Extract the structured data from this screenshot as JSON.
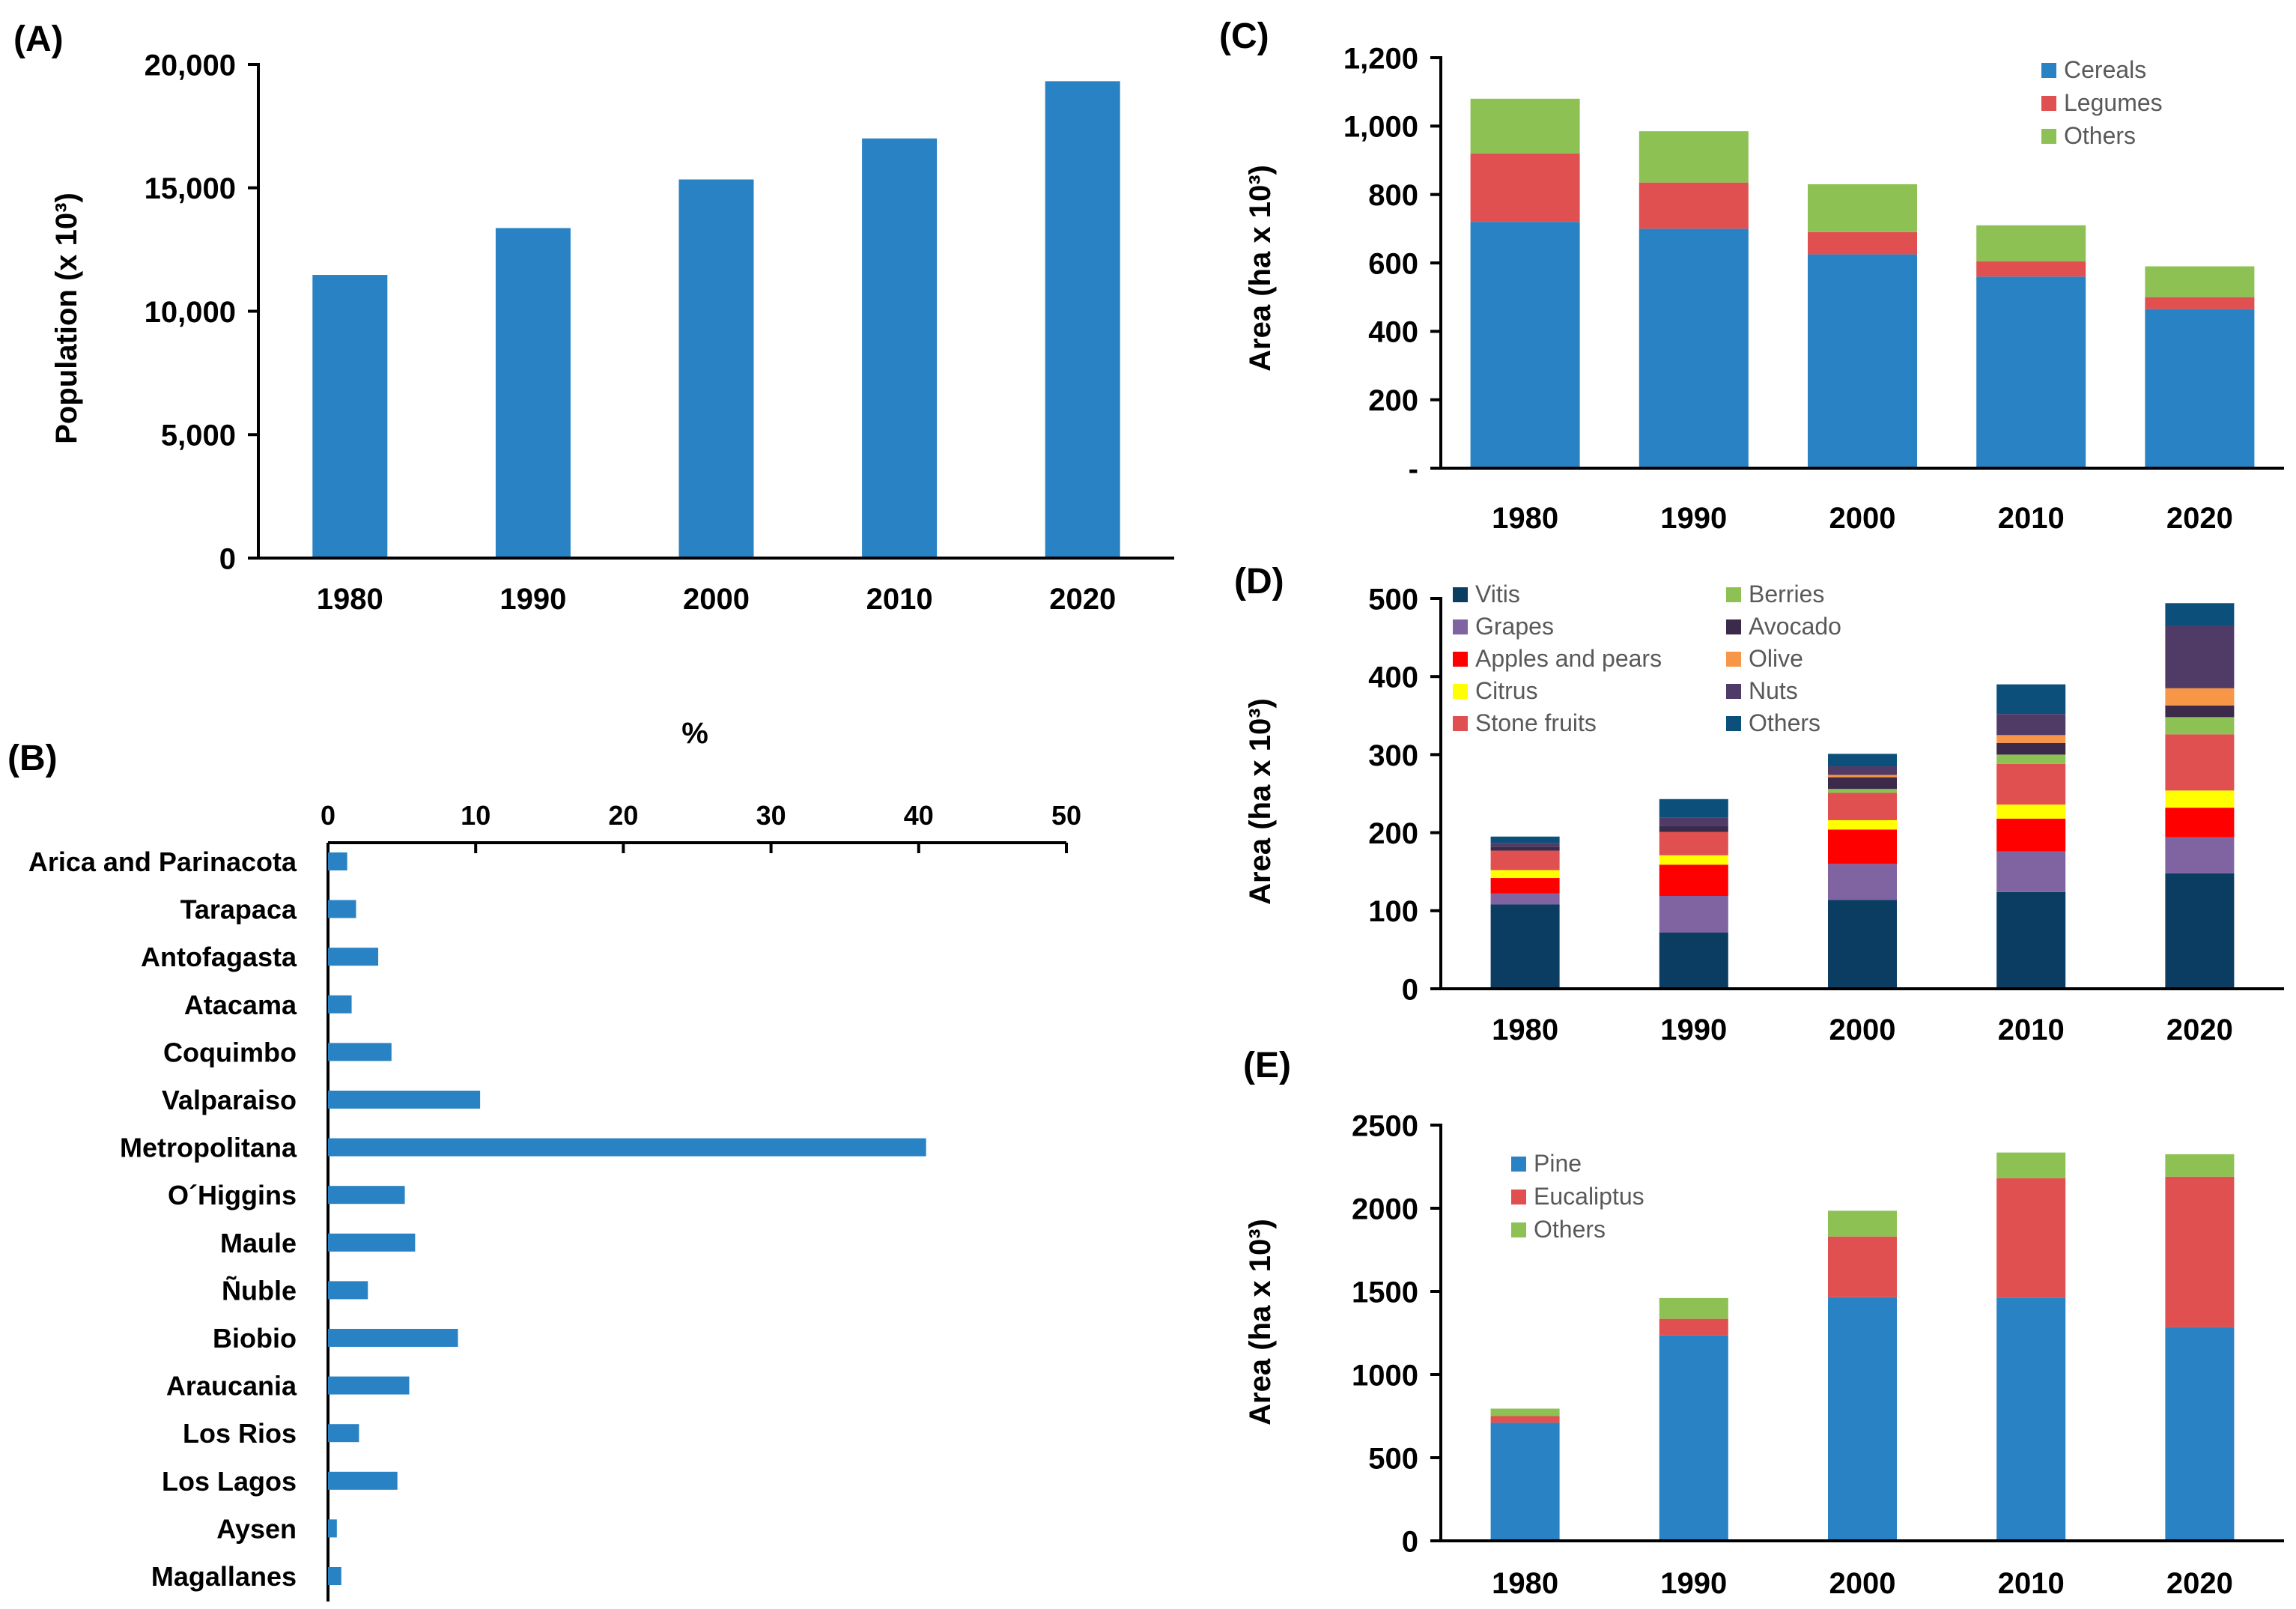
{
  "chart_data": [
    {
      "panel": "(A)",
      "type": "bar",
      "categories": [
        "1980",
        "1990",
        "2000",
        "2010",
        "2020"
      ],
      "values": [
        11470,
        13370,
        15340,
        17000,
        19320
      ],
      "ylabel": "Population (x 10³)",
      "ylim": [
        0,
        20000
      ],
      "yticks": [
        "0",
        "5,000",
        "10,000",
        "15,000",
        "20,000"
      ],
      "colors": {
        "bar": "#2882c3"
      }
    },
    {
      "panel": "(B)",
      "type": "bar",
      "orientation": "horizontal",
      "xlabel": "%",
      "xlim": [
        0,
        50
      ],
      "xticks": [
        "0",
        "10",
        "20",
        "30",
        "40",
        "50"
      ],
      "categories": [
        "Arica and Parinacota",
        "Tarapaca",
        "Antofagasta",
        "Atacama",
        "Coquimbo",
        "Valparaiso",
        "Metropolitana",
        "O´Higgins",
        "Maule",
        "Ñuble",
        "Biobio",
        "Araucania",
        "Los Rios",
        "Los Lagos",
        "Aysen",
        "Magallanes"
      ],
      "values": [
        1.3,
        1.9,
        3.4,
        1.6,
        4.3,
        10.3,
        40.5,
        5.2,
        5.9,
        2.7,
        8.8,
        5.5,
        2.1,
        4.7,
        0.6,
        0.9
      ],
      "colors": {
        "bar": "#2882c3"
      }
    },
    {
      "panel": "(C)",
      "type": "bar",
      "stacked": true,
      "categories": [
        "1980",
        "1990",
        "2000",
        "2010",
        "2020"
      ],
      "series": [
        {
          "name": "Cereals",
          "values": [
            720,
            700,
            625,
            560,
            465
          ],
          "color": "#2882c3"
        },
        {
          "name": "Legumes",
          "values": [
            200,
            135,
            65,
            45,
            35
          ],
          "color": "#e05050"
        },
        {
          "name": "Others",
          "values": [
            160,
            150,
            140,
            105,
            90
          ],
          "color": "#8dc153"
        }
      ],
      "ylabel": "Area (ha x 10³)",
      "ylim": [
        0,
        1200
      ],
      "yticks": [
        "-",
        "200",
        "400",
        "600",
        "800",
        "1,000",
        "1,200"
      ],
      "legend": "top-right"
    },
    {
      "panel": "(D)",
      "type": "bar",
      "stacked": true,
      "categories": [
        "1980",
        "1990",
        "2000",
        "2010",
        "2020"
      ],
      "series": [
        {
          "name": "Vitis",
          "values": [
            108,
            72,
            114,
            124,
            148
          ],
          "color": "#0b3c62"
        },
        {
          "name": "Grapes",
          "values": [
            14,
            47,
            46,
            52,
            46
          ],
          "color": "#8064a2"
        },
        {
          "name": "Apples and pears",
          "values": [
            20,
            40,
            44,
            42,
            38
          ],
          "color": "#ff0000"
        },
        {
          "name": "Citrus",
          "values": [
            10,
            12,
            12,
            18,
            22
          ],
          "color": "#ffff00"
        },
        {
          "name": "Stone fruits",
          "values": [
            25,
            30,
            35,
            52,
            72
          ],
          "color": "#e05050"
        },
        {
          "name": "Berries",
          "values": [
            0,
            0,
            5,
            12,
            22
          ],
          "color": "#8dc153"
        },
        {
          "name": "Avocado",
          "values": [
            5,
            8,
            15,
            15,
            15
          ],
          "color": "#3b2a4a"
        },
        {
          "name": "Olive",
          "values": [
            0,
            0,
            3,
            10,
            22
          ],
          "color": "#f79646"
        },
        {
          "name": "Nuts",
          "values": [
            5,
            10,
            11,
            27,
            80
          ],
          "color": "#4f3b66"
        },
        {
          "name": "Others",
          "values": [
            8,
            24,
            16,
            38,
            29
          ],
          "color": "#0b4f7a"
        }
      ],
      "ylabel": "Area (ha x 10³)",
      "ylim": [
        0,
        500
      ],
      "yticks": [
        "0",
        "100",
        "200",
        "300",
        "400",
        "500"
      ],
      "legend": "top-left"
    },
    {
      "panel": "(E)",
      "type": "bar",
      "stacked": true,
      "categories": [
        "1980",
        "1990",
        "2000",
        "2010",
        "2020"
      ],
      "series": [
        {
          "name": "Pine",
          "values": [
            710,
            1235,
            1465,
            1460,
            1285
          ],
          "color": "#2882c3"
        },
        {
          "name": "Eucaliptus",
          "values": [
            40,
            100,
            365,
            720,
            905
          ],
          "color": "#e05050"
        },
        {
          "name": "Others",
          "values": [
            45,
            125,
            155,
            155,
            135
          ],
          "color": "#8dc153"
        }
      ],
      "ylabel": "Area (ha x 10³)",
      "ylim": [
        0,
        2500
      ],
      "yticks": [
        "0",
        "500",
        "1000",
        "1500",
        "2000",
        "2500"
      ],
      "legend": "top-left"
    }
  ]
}
